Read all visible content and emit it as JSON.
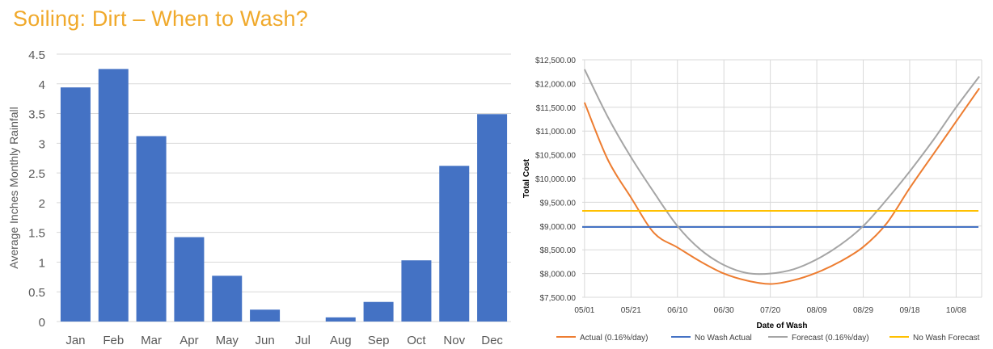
{
  "title": "Soiling: Dirt – When to Wash?",
  "chart_data": [
    {
      "type": "bar",
      "title": "",
      "xlabel": "",
      "ylabel": "Average Inches Monthly Rainfall",
      "categories": [
        "Jan",
        "Feb",
        "Mar",
        "Apr",
        "May",
        "Jun",
        "Jul",
        "Aug",
        "Sep",
        "Oct",
        "Nov",
        "Dec"
      ],
      "values": [
        3.94,
        4.25,
        3.12,
        1.42,
        0.77,
        0.2,
        0,
        0.07,
        0.33,
        1.03,
        2.62,
        3.49
      ],
      "ylim": [
        0,
        4.5
      ],
      "yticks": [
        "0",
        "0.5",
        "1",
        "1.5",
        "2",
        "2.5",
        "3",
        "3.5",
        "4",
        "4.5"
      ],
      "grid": true,
      "colors": {
        "bar": "#4472c4",
        "grid": "#d9d9d9",
        "text": "#595959"
      }
    },
    {
      "type": "line",
      "title": "",
      "xlabel": "Date of Wash",
      "ylabel": "Total Cost",
      "x_start": "05/01",
      "xticks": [
        "05/01",
        "05/21",
        "06/10",
        "06/30",
        "07/20",
        "08/09",
        "08/29",
        "09/18",
        "10/08"
      ],
      "xlim": [
        "04/30",
        "10/19"
      ],
      "ylim": [
        7500,
        12500
      ],
      "yticks": [
        "$7,500.00",
        "$8,000.00",
        "$8,500.00",
        "$9,000.00",
        "$9,500.00",
        "$10,000.00",
        "$10,500.00",
        "$11,000.00",
        "$11,500.00",
        "$12,000.00",
        "$12,500.00"
      ],
      "legend_position": "bottom",
      "grid": true,
      "series": [
        {
          "name": "Actual (0.16%/day)",
          "color": "#ed7d31",
          "x": [
            "05/01",
            "05/11",
            "05/21",
            "05/31",
            "06/10",
            "06/20",
            "06/30",
            "07/10",
            "07/20",
            "07/30",
            "08/09",
            "08/19",
            "08/29",
            "09/08",
            "09/18",
            "09/28",
            "10/08",
            "10/18"
          ],
          "values": [
            11600,
            10400,
            9600,
            8850,
            8550,
            8250,
            8000,
            7850,
            7780,
            7860,
            8020,
            8250,
            8560,
            9050,
            9800,
            10500,
            11200,
            11900
          ]
        },
        {
          "name": "No Wash Actual",
          "color": "#4472c4",
          "x": [
            "05/01",
            "10/18"
          ],
          "values": [
            8980,
            8980
          ]
        },
        {
          "name": "Forecast (0.16%/day)",
          "color": "#a5a5a5",
          "x": [
            "05/01",
            "05/11",
            "05/21",
            "05/31",
            "06/10",
            "06/20",
            "06/30",
            "07/10",
            "07/20",
            "07/30",
            "08/09",
            "08/19",
            "08/29",
            "09/08",
            "09/18",
            "09/28",
            "10/08",
            "10/18"
          ],
          "values": [
            12300,
            11300,
            10450,
            9700,
            9000,
            8500,
            8180,
            8010,
            8000,
            8090,
            8300,
            8600,
            9000,
            9550,
            10150,
            10800,
            11500,
            12150
          ]
        },
        {
          "name": "No Wash Forecast",
          "color": "#ffc000",
          "x": [
            "05/01",
            "10/18"
          ],
          "values": [
            9320,
            9320
          ]
        }
      ]
    }
  ]
}
